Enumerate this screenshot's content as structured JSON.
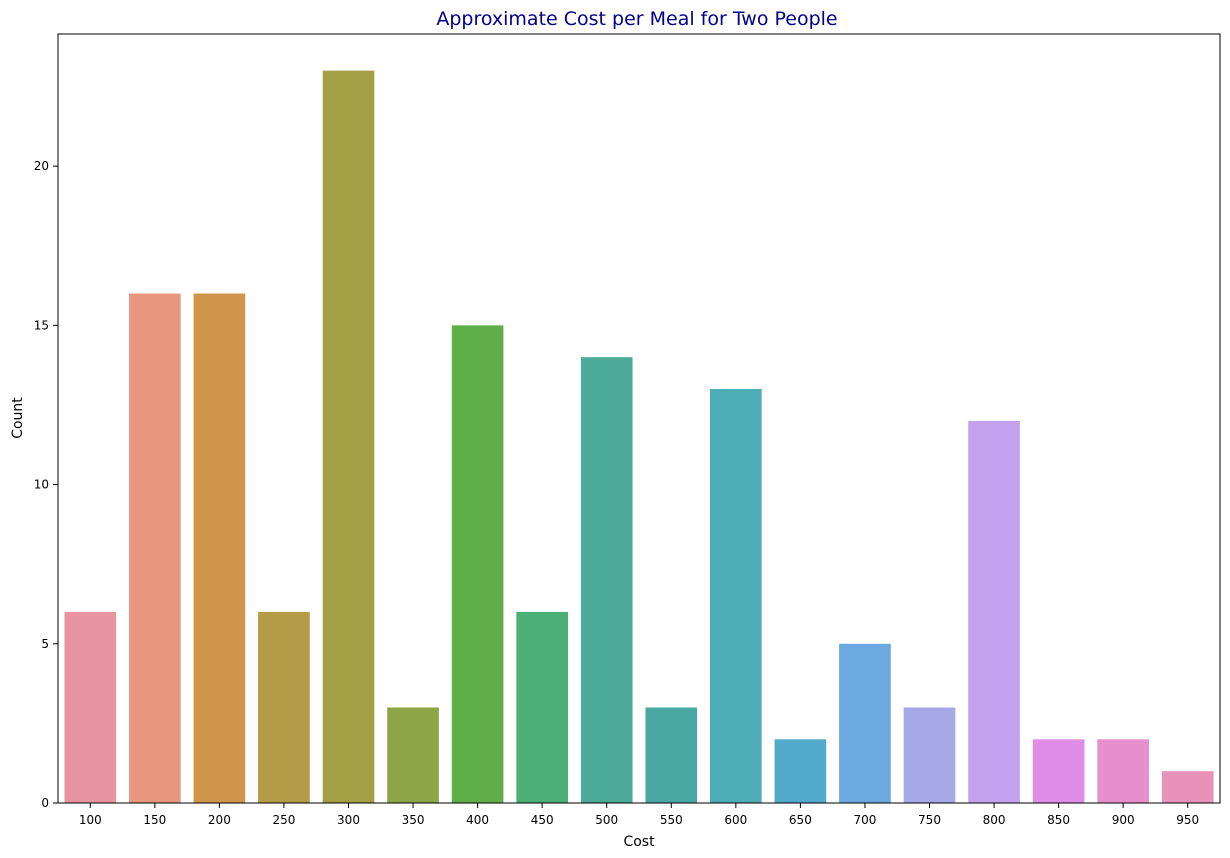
{
  "chart_data": {
    "type": "bar",
    "title": "Approximate Cost per Meal for Two People",
    "xlabel": "Cost",
    "ylabel": "Count",
    "categories": [
      "100",
      "150",
      "200",
      "250",
      "300",
      "350",
      "400",
      "450",
      "500",
      "550",
      "600",
      "650",
      "700",
      "750",
      "800",
      "850",
      "900",
      "950"
    ],
    "values": [
      6,
      16,
      16,
      6,
      23,
      3,
      15,
      6,
      14,
      3,
      13,
      2,
      5,
      3,
      12,
      2,
      2,
      1
    ],
    "ylim": [
      0,
      24.15
    ],
    "yticks": [
      "0",
      "5",
      "10",
      "15",
      "20"
    ],
    "grid": false,
    "legend": "none",
    "colors": {
      "title": "#00008b",
      "bars": [
        "#e8939f",
        "#e8967e",
        "#cf964b",
        "#b49b47",
        "#a29f44",
        "#8ea545",
        "#60ae47",
        "#4baf76",
        "#4bab98",
        "#4aa8a4",
        "#4eacb7",
        "#51aacb",
        "#6ba9e0",
        "#a6a8e8",
        "#c3a1ec",
        "#e08ce9",
        "#e78fcc",
        "#e892b9"
      ]
    }
  }
}
